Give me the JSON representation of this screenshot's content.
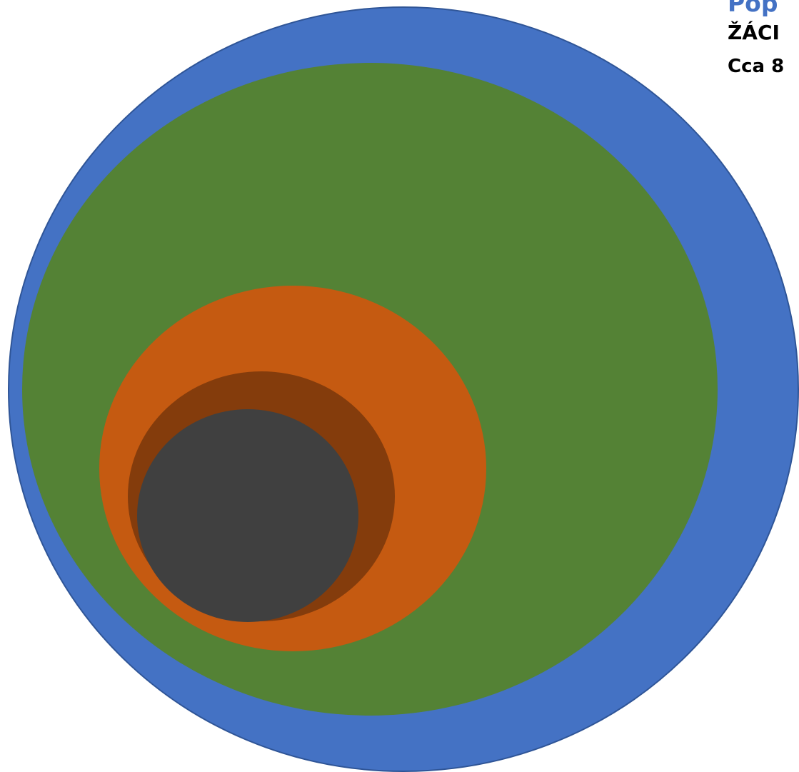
{
  "diagram": {
    "layers": [
      {
        "name": "outer",
        "color": "#4472C4"
      },
      {
        "name": "second",
        "color": "#548235"
      },
      {
        "name": "third",
        "color": "#C55A11"
      },
      {
        "name": "fourth",
        "color": "#843C0C"
      },
      {
        "name": "inner",
        "color": "#404040"
      }
    ]
  },
  "caption": {
    "line1": "Pop",
    "line2": "ŽÁCI",
    "line3": "Cca 8"
  }
}
